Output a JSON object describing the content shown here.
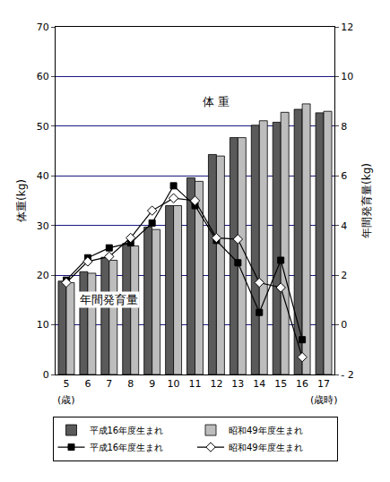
{
  "chart_data": {
    "type": "bar",
    "categories": [
      "5",
      "6",
      "7",
      "8",
      "9",
      "10",
      "11",
      "12",
      "13",
      "14",
      "15",
      "16",
      "17"
    ],
    "ylabel": "体重(kg)",
    "y2label": "年間発育量(kg)",
    "ylim": [
      0,
      70
    ],
    "yticks": [
      0,
      10,
      20,
      30,
      40,
      50,
      60,
      70
    ],
    "y2lim": [
      -2,
      12
    ],
    "y2ticks": [
      {
        "value": -2,
        "label": "- 2"
      },
      0,
      2,
      4,
      6,
      8,
      10,
      12
    ],
    "grid": true,
    "legend": "bottom",
    "annotations": [
      {
        "text": "体 重",
        "category": "12",
        "axis": "y",
        "value": 55
      },
      {
        "text": "年間発育量",
        "category": "7",
        "axis": "y2",
        "value": 1
      },
      {
        "text": "(歳)",
        "category": "5"
      },
      {
        "text": "(歳時)",
        "category": "17"
      }
    ],
    "series": [
      {
        "name": "平成16年度生まれ",
        "type": "bar",
        "color": "#5a5a5a",
        "values": [
          18.8,
          20.7,
          23.6,
          26.4,
          29.7,
          34.0,
          39.6,
          44.3,
          47.7,
          50.2,
          50.8,
          53.4,
          52.7
        ]
      },
      {
        "name": "昭和49年度生まれ",
        "type": "bar",
        "color": "#bdbdbd",
        "values": [
          18.5,
          20.4,
          23.0,
          25.9,
          29.2,
          34.0,
          38.9,
          44.0,
          47.7,
          51.1,
          52.8,
          54.5,
          53.0
        ]
      },
      {
        "name": "平成16年度生まれ",
        "type": "line",
        "axis": "y2",
        "color": "#000000",
        "marker": "square",
        "values": [
          1.8,
          2.7,
          3.1,
          3.3,
          4.1,
          5.6,
          4.8,
          3.4,
          2.5,
          0.5,
          2.6,
          -0.6,
          null
        ]
      },
      {
        "name": "昭和49年度生まれ",
        "type": "line",
        "axis": "y2",
        "color": "#000000",
        "marker": "diamond-open",
        "values": [
          1.7,
          2.55,
          2.75,
          3.5,
          4.6,
          5.1,
          5.0,
          3.5,
          3.45,
          1.7,
          1.5,
          -1.3,
          null
        ]
      }
    ]
  }
}
